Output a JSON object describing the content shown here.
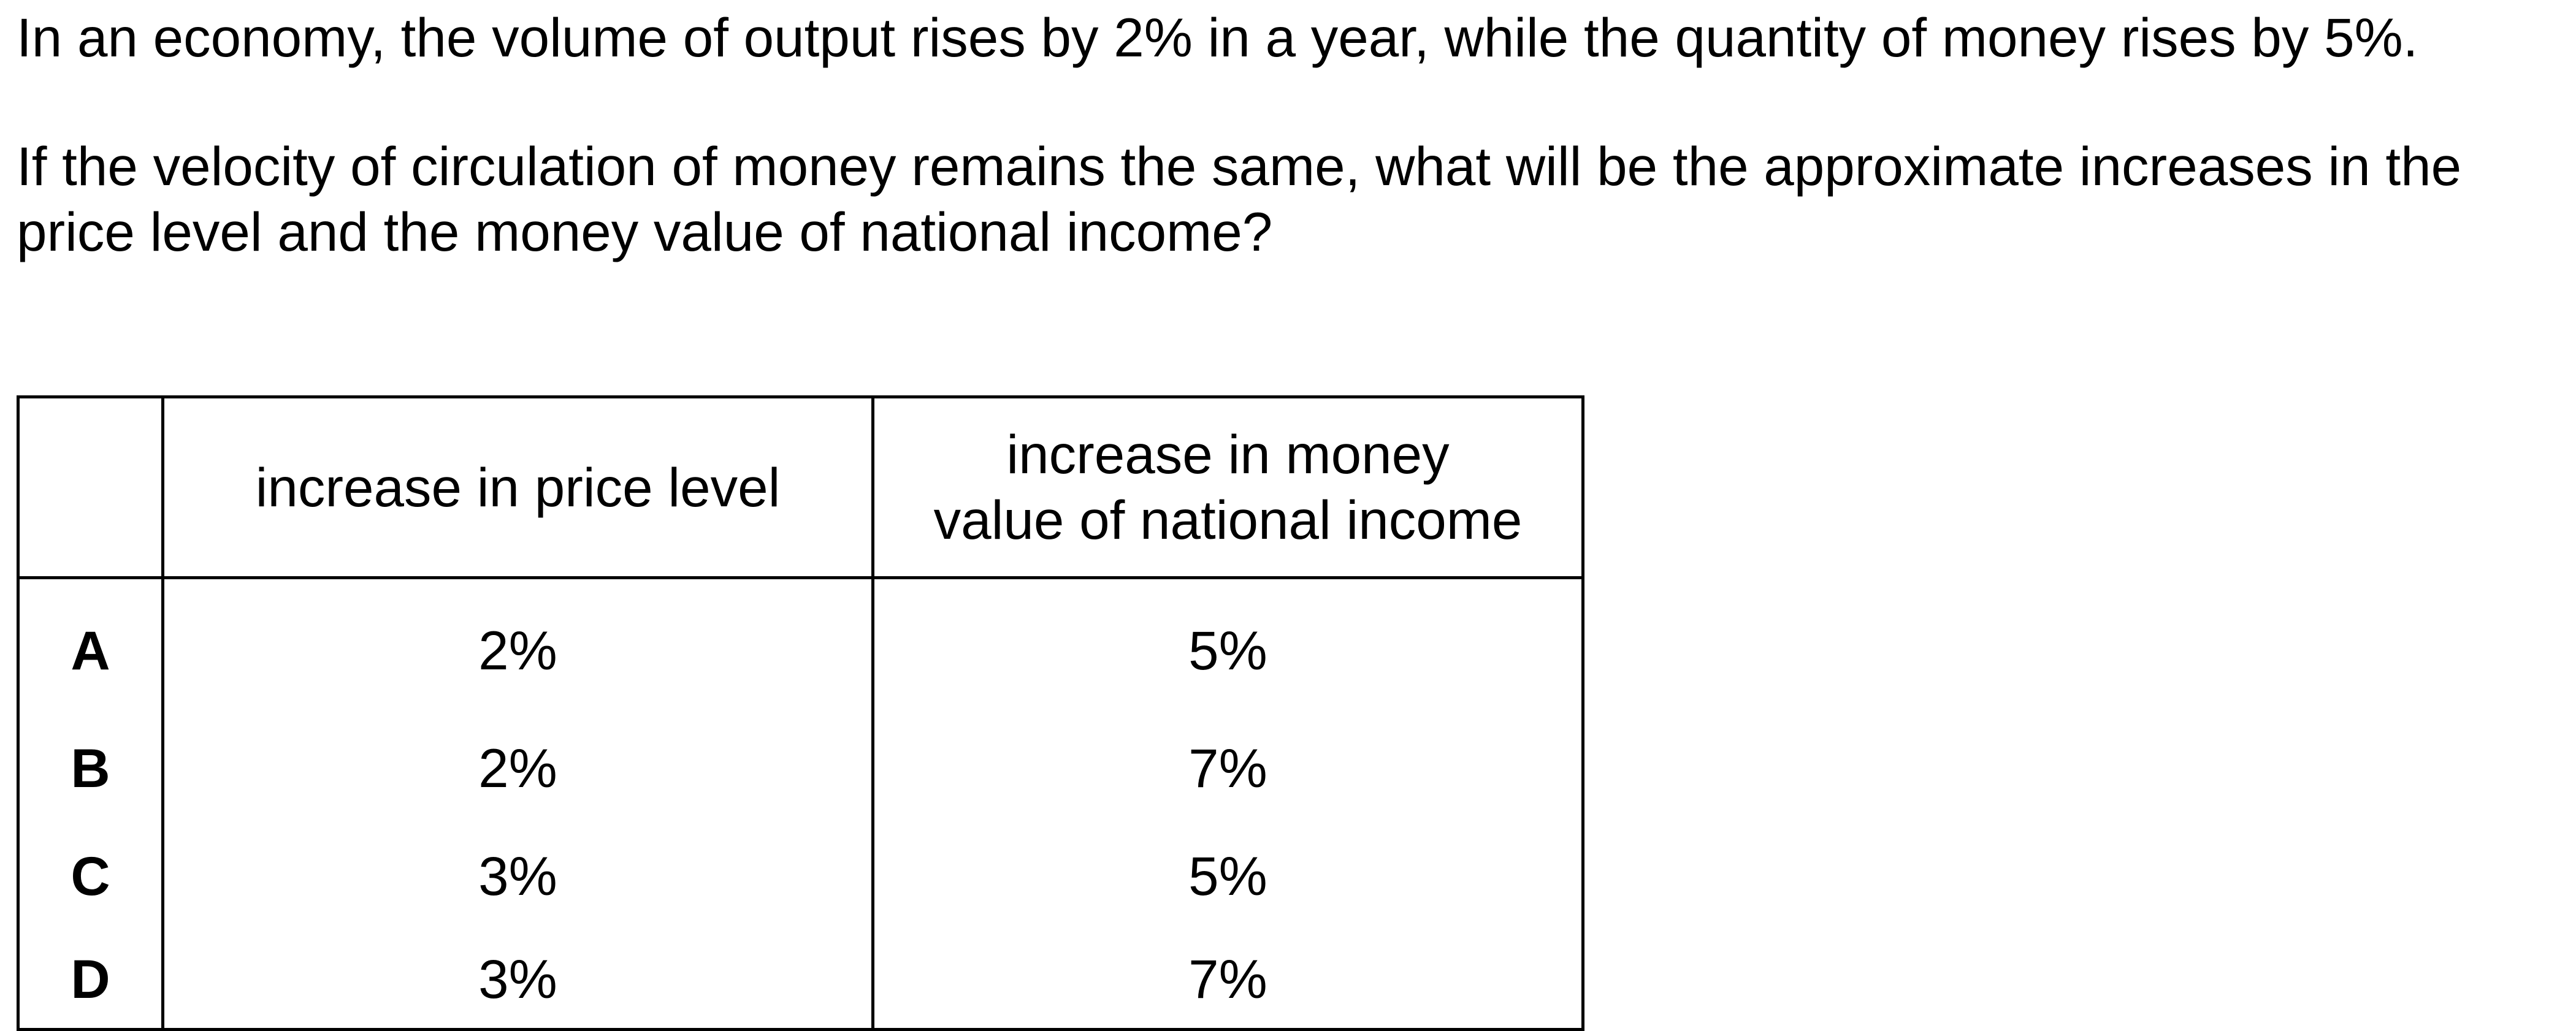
{
  "question": {
    "paragraph_1": "In an economy, the volume of output rises by 2% in a year, while the quantity of money rises by 5%.",
    "paragraph_2": "If the velocity of circulation of money remains the same, what will be the approximate increases in the price level and the money value of national income?"
  },
  "table": {
    "headers": {
      "key": "",
      "price_level": "increase in price level",
      "income_line_1": "increase in money",
      "income_line_2": "value of national income"
    },
    "rows": [
      {
        "key": "A",
        "price_level": "2%",
        "income": "5%"
      },
      {
        "key": "B",
        "price_level": "2%",
        "income": "7%"
      },
      {
        "key": "C",
        "price_level": "3%",
        "income": "5%"
      },
      {
        "key": "D",
        "price_level": "3%",
        "income": "7%"
      }
    ]
  }
}
